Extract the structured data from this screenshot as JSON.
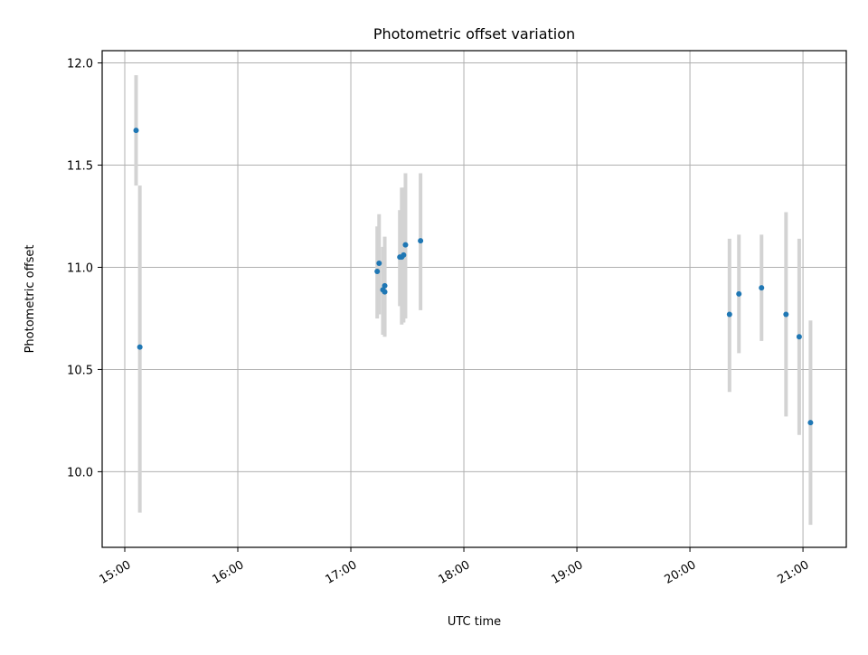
{
  "chart_data": {
    "type": "scatter",
    "title": "Photometric offset variation",
    "xlabel": "UTC time",
    "ylabel": "Photometric offset",
    "x_unit": "UTC time of day (HH:MM)",
    "xlim": [
      "14:48",
      "21:23"
    ],
    "ylim": [
      9.63,
      12.06
    ],
    "x_ticks": [
      "15:00",
      "16:00",
      "17:00",
      "18:00",
      "19:00",
      "20:00",
      "21:00"
    ],
    "y_ticks": [
      10.0,
      10.5,
      11.0,
      11.5,
      12.0
    ],
    "y_tick_labels": [
      "10.0",
      "10.5",
      "11.0",
      "11.5",
      "12.0"
    ],
    "grid": true,
    "series": [
      {
        "marker_color": "#1f77b4",
        "errorbar_color": "#d3d3d3",
        "points": [
          {
            "x": "15:06",
            "y": 11.67,
            "y_low": 11.4,
            "y_high": 11.94
          },
          {
            "x": "15:08",
            "y": 10.61,
            "y_low": 9.8,
            "y_high": 11.4
          },
          {
            "x": "17:14",
            "y": 10.98,
            "y_low": 10.75,
            "y_high": 11.2
          },
          {
            "x": "17:15",
            "y": 11.02,
            "y_low": 10.77,
            "y_high": 11.26
          },
          {
            "x": "17:17",
            "y": 10.89,
            "y_low": 10.67,
            "y_high": 11.1
          },
          {
            "x": "17:18",
            "y": 10.88,
            "y_low": 10.66,
            "y_high": 11.1
          },
          {
            "x": "17:18",
            "y": 10.91,
            "y_low": 10.67,
            "y_high": 11.15
          },
          {
            "x": "17:26",
            "y": 11.05,
            "y_low": 10.81,
            "y_high": 11.28
          },
          {
            "x": "17:27",
            "y": 11.05,
            "y_low": 10.72,
            "y_high": 11.39
          },
          {
            "x": "17:28",
            "y": 11.06,
            "y_low": 10.73,
            "y_high": 11.39
          },
          {
            "x": "17:29",
            "y": 11.11,
            "y_low": 10.75,
            "y_high": 11.46
          },
          {
            "x": "17:37",
            "y": 11.13,
            "y_low": 10.79,
            "y_high": 11.46
          },
          {
            "x": "20:21",
            "y": 10.77,
            "y_low": 10.39,
            "y_high": 11.14
          },
          {
            "x": "20:26",
            "y": 10.87,
            "y_low": 10.58,
            "y_high": 11.16
          },
          {
            "x": "20:38",
            "y": 10.9,
            "y_low": 10.64,
            "y_high": 11.16
          },
          {
            "x": "20:51",
            "y": 10.77,
            "y_low": 10.27,
            "y_high": 11.27
          },
          {
            "x": "20:58",
            "y": 10.66,
            "y_low": 10.18,
            "y_high": 11.14
          },
          {
            "x": "21:04",
            "y": 10.24,
            "y_low": 9.74,
            "y_high": 10.74
          }
        ]
      }
    ]
  }
}
